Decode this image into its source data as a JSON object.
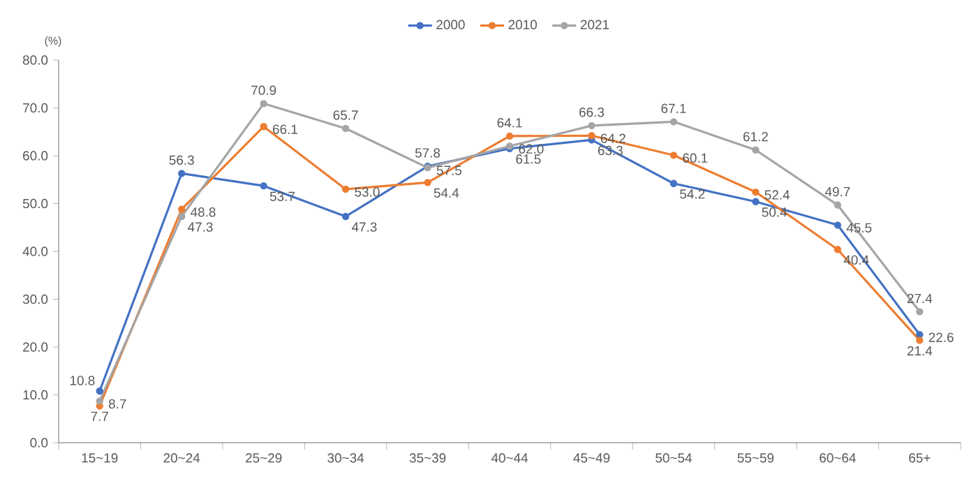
{
  "chart_data": {
    "type": "line",
    "ylabel": "(%)",
    "categories": [
      "15~19",
      "20~24",
      "25~29",
      "30~34",
      "35~39",
      "40~44",
      "45~49",
      "50~54",
      "55~59",
      "60~64",
      "65+"
    ],
    "series": [
      {
        "name": "2000",
        "color": "#4472c4",
        "values": [
          10.8,
          56.3,
          53.7,
          47.3,
          57.8,
          61.5,
          63.3,
          54.2,
          50.4,
          45.5,
          22.6
        ],
        "value_labels": [
          "10.8",
          "56.3",
          "53.7",
          "47.3",
          "57.8",
          "61.5",
          "63.3",
          "54.2",
          "50.4",
          "45.5",
          "22.6"
        ]
      },
      {
        "name": "2010",
        "color": "#ed7d31",
        "values": [
          7.7,
          48.8,
          66.1,
          53.0,
          54.4,
          64.1,
          64.2,
          60.1,
          52.4,
          40.4,
          21.4
        ],
        "value_labels": [
          "7.7",
          "48.8",
          "66.1",
          "53.0",
          "54.4",
          "64.1",
          "64.2",
          "60.1",
          "52.4",
          "40.4",
          "21.4"
        ]
      },
      {
        "name": "2021",
        "color": "#a5a5a5",
        "values": [
          8.7,
          47.3,
          70.9,
          65.7,
          57.5,
          62.0,
          66.3,
          67.1,
          61.2,
          49.7,
          27.4
        ],
        "value_labels": [
          "8.7",
          "47.3",
          "70.9",
          "65.7",
          "57.5",
          "62.0",
          "66.3",
          "67.1",
          "61.2",
          "49.7",
          "27.4"
        ]
      }
    ],
    "ylim": [
      0,
      80
    ],
    "yticks": [
      {
        "value": 0,
        "label": "0.0"
      },
      {
        "value": 10,
        "label": "10.0"
      },
      {
        "value": 20,
        "label": "20.0"
      },
      {
        "value": 30,
        "label": "30.0"
      },
      {
        "value": 40,
        "label": "40.0"
      },
      {
        "value": 50,
        "label": "50.0"
      },
      {
        "value": 60,
        "label": "60.0"
      },
      {
        "value": 70,
        "label": "70.0"
      },
      {
        "value": 80,
        "label": "80.0"
      }
    ],
    "grid": false,
    "legend": "top",
    "marker": "circle",
    "line_style": "solid"
  }
}
